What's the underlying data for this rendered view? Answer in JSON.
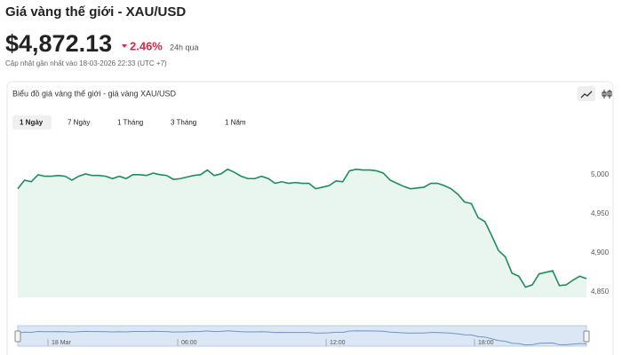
{
  "header": {
    "title": "Giá vàng thế giới - XAU/USD",
    "price": "$4,872.13",
    "change": "2.46%",
    "change_period": "24h qua",
    "updated": "Cập nhật gần nhất vào 18-03-2026 22:33 (UTC +7)"
  },
  "card": {
    "title": "Biểu đồ giá vàng thế giới - giá vàng XAU/USD",
    "tabs": [
      "1 Ngày",
      "7 Ngày",
      "1 Tháng",
      "3 Tháng",
      "1 Năm"
    ],
    "active_tab": 0
  },
  "chart_data": {
    "type": "area",
    "values": [
      4982,
      4993,
      4991,
      5000,
      4998,
      4998,
      4999,
      4998,
      4993,
      4998,
      5001,
      4999,
      4999,
      4998,
      4995,
      4998,
      4995,
      5000,
      5000,
      4999,
      5002,
      5000,
      4999,
      4994,
      4995,
      4997,
      4999,
      5000,
      5006,
      4999,
      5001,
      5007,
      5003,
      4998,
      4995,
      4995,
      4998,
      4995,
      4989,
      4991,
      4989,
      4990,
      4989,
      4989,
      4982,
      4984,
      4986,
      4992,
      4991,
      5005,
      5007,
      5006,
      5006,
      5005,
      5002,
      4993,
      4989,
      4985,
      4982,
      4983,
      4984,
      4989,
      4989,
      4986,
      4982,
      4975,
      4965,
      4963,
      4945,
      4940,
      4922,
      4903,
      4895,
      4874,
      4870,
      4856,
      4859,
      4873,
      4875,
      4877,
      4858,
      4859,
      4865,
      4870,
      4867
    ],
    "color": "#1f8c5c",
    "fill": "#e9f5ef",
    "ylim": [
      4843,
      5043
    ],
    "yticks": [
      {
        "value": 5000,
        "label": "5,000"
      },
      {
        "value": 4950,
        "label": "4,950"
      },
      {
        "value": 4900,
        "label": "4,900"
      },
      {
        "value": 4850,
        "label": "4,850"
      }
    ],
    "grid": false
  },
  "navigator": {
    "labels": [
      "18 Mar",
      "06:00",
      "12:00",
      "18:00"
    ],
    "color": "#6f95c4",
    "fill": "#dbe7f4"
  }
}
